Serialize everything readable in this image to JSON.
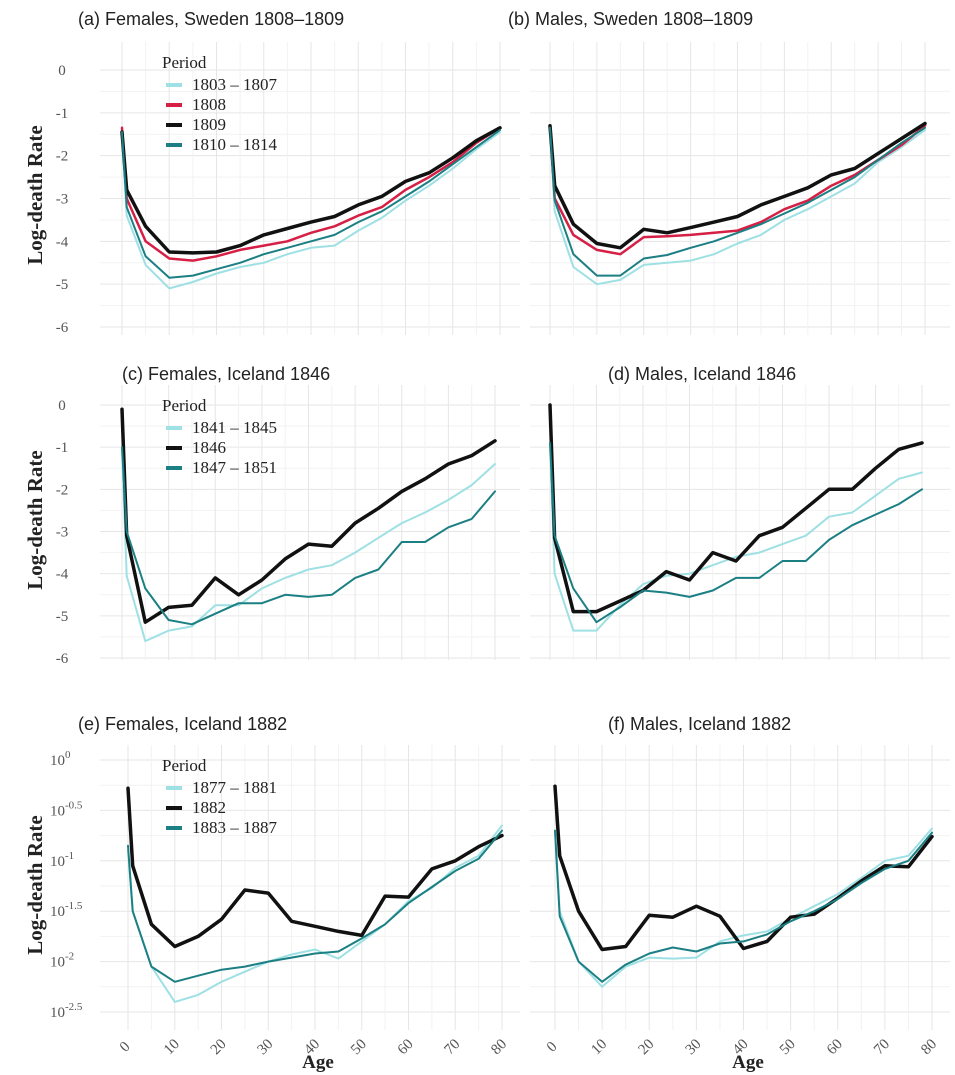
{
  "colors": {
    "light_teal": "#9ee0e3",
    "red": "#d61f45",
    "black": "#111111",
    "teal": "#1b7f83"
  },
  "y_axis_label": "Log-death Rate",
  "x_axis_label": "Age",
  "chart_data": [
    {
      "type": "line",
      "title": "(a) Females, Sweden 1808–1809",
      "ylabel": "Log-death Rate",
      "xlim": [
        0,
        80
      ],
      "ylim": [
        -6,
        0
      ],
      "yticks": [
        0,
        -1,
        -2,
        -3,
        -4,
        -5,
        -6
      ],
      "ytick_labels": [
        "0",
        "-1",
        "-2",
        "-3",
        "-4",
        "-5",
        "-6"
      ],
      "grid": true,
      "legend": {
        "title": "Period",
        "placement": "top-left"
      },
      "series": [
        {
          "name": "1803 – 1807",
          "color": "#9ee0e3",
          "width": 2,
          "x": [
            0,
            1,
            5,
            10,
            15,
            20,
            25,
            30,
            35,
            40,
            45,
            50,
            55,
            60,
            65,
            70,
            75,
            80
          ],
          "y": [
            -1.5,
            -3.4,
            -4.55,
            -5.1,
            -4.95,
            -4.75,
            -4.6,
            -4.5,
            -4.3,
            -4.15,
            -4.1,
            -3.75,
            -3.45,
            -3.05,
            -2.7,
            -2.3,
            -1.85,
            -1.45
          ]
        },
        {
          "name": "1808",
          "color": "#d61f45",
          "width": 2.5,
          "x": [
            0,
            1,
            5,
            10,
            15,
            20,
            25,
            30,
            35,
            40,
            45,
            50,
            55,
            60,
            65,
            70,
            75,
            80
          ],
          "y": [
            -1.35,
            -3.0,
            -4.0,
            -4.4,
            -4.45,
            -4.35,
            -4.2,
            -4.1,
            -4.0,
            -3.8,
            -3.65,
            -3.4,
            -3.2,
            -2.8,
            -2.5,
            -2.15,
            -1.7,
            -1.35
          ]
        },
        {
          "name": "1809",
          "color": "#111111",
          "width": 3.5,
          "x": [
            0,
            1,
            5,
            10,
            15,
            20,
            25,
            30,
            35,
            40,
            45,
            50,
            55,
            60,
            65,
            70,
            75,
            80
          ],
          "y": [
            -1.45,
            -2.8,
            -3.65,
            -4.25,
            -4.27,
            -4.25,
            -4.1,
            -3.85,
            -3.7,
            -3.55,
            -3.42,
            -3.15,
            -2.95,
            -2.6,
            -2.4,
            -2.05,
            -1.65,
            -1.35
          ]
        },
        {
          "name": "1810 – 1814",
          "color": "#1b7f83",
          "width": 2,
          "x": [
            0,
            1,
            5,
            10,
            15,
            20,
            25,
            30,
            35,
            40,
            45,
            50,
            55,
            60,
            65,
            70,
            75,
            80
          ],
          "y": [
            -1.45,
            -3.2,
            -4.35,
            -4.85,
            -4.8,
            -4.65,
            -4.5,
            -4.3,
            -4.15,
            -4.0,
            -3.85,
            -3.55,
            -3.3,
            -2.95,
            -2.6,
            -2.2,
            -1.8,
            -1.4
          ]
        }
      ]
    },
    {
      "type": "line",
      "title": "(b) Males, Sweden 1808–1809",
      "xlim": [
        0,
        80
      ],
      "ylim": [
        -6,
        0
      ],
      "grid": true,
      "series": [
        {
          "color": "#9ee0e3",
          "width": 2,
          "x": [
            0,
            1,
            5,
            10,
            15,
            20,
            25,
            30,
            35,
            40,
            45,
            50,
            55,
            60,
            65,
            70,
            75,
            80
          ],
          "y": [
            -1.4,
            -3.3,
            -4.6,
            -5.0,
            -4.9,
            -4.55,
            -4.5,
            -4.45,
            -4.3,
            -4.05,
            -3.85,
            -3.5,
            -3.25,
            -2.95,
            -2.65,
            -2.15,
            -1.8,
            -1.4
          ]
        },
        {
          "color": "#d61f45",
          "width": 2.5,
          "x": [
            0,
            1,
            5,
            10,
            15,
            20,
            25,
            30,
            35,
            40,
            45,
            50,
            55,
            60,
            65,
            70,
            75,
            80
          ],
          "y": [
            -1.3,
            -3.0,
            -3.85,
            -4.2,
            -4.3,
            -3.9,
            -3.88,
            -3.85,
            -3.8,
            -3.75,
            -3.55,
            -3.25,
            -3.05,
            -2.7,
            -2.45,
            -2.1,
            -1.75,
            -1.3
          ]
        },
        {
          "color": "#111111",
          "width": 3.5,
          "x": [
            0,
            1,
            5,
            10,
            15,
            20,
            25,
            30,
            35,
            40,
            45,
            50,
            55,
            60,
            65,
            70,
            75,
            80
          ],
          "y": [
            -1.3,
            -2.7,
            -3.6,
            -4.05,
            -4.15,
            -3.72,
            -3.8,
            -3.68,
            -3.55,
            -3.42,
            -3.15,
            -2.95,
            -2.75,
            -2.45,
            -2.3,
            -1.95,
            -1.6,
            -1.25
          ]
        },
        {
          "color": "#1b7f83",
          "width": 2,
          "x": [
            0,
            1,
            5,
            10,
            15,
            20,
            25,
            30,
            35,
            40,
            45,
            50,
            55,
            60,
            65,
            70,
            75,
            80
          ],
          "y": [
            -1.35,
            -3.05,
            -4.3,
            -4.8,
            -4.8,
            -4.4,
            -4.32,
            -4.15,
            -4.0,
            -3.8,
            -3.6,
            -3.35,
            -3.1,
            -2.8,
            -2.5,
            -2.1,
            -1.7,
            -1.35
          ]
        }
      ]
    },
    {
      "type": "line",
      "title": "(c) Females, Iceland 1846",
      "ylabel": "Log-death Rate",
      "xlim": [
        0,
        80
      ],
      "ylim": [
        -6,
        0
      ],
      "yticks": [
        0,
        -1,
        -2,
        -3,
        -4,
        -5,
        -6
      ],
      "ytick_labels": [
        "0",
        "-1",
        "-2",
        "-3",
        "-4",
        "-5",
        "-6"
      ],
      "grid": true,
      "legend": {
        "title": "Period",
        "placement": "top-left"
      },
      "series": [
        {
          "name": "1841 – 1845",
          "color": "#9ee0e3",
          "width": 2,
          "x": [
            0,
            1,
            5,
            10,
            15,
            20,
            25,
            30,
            35,
            40,
            45,
            50,
            55,
            60,
            65,
            70,
            75,
            80
          ],
          "y": [
            -1.0,
            -4.05,
            -5.6,
            -5.35,
            -5.25,
            -4.75,
            -4.75,
            -4.35,
            -4.1,
            -3.9,
            -3.8,
            -3.5,
            -3.15,
            -2.8,
            -2.55,
            -2.25,
            -1.9,
            -1.4
          ]
        },
        {
          "name": "1846",
          "color": "#111111",
          "width": 3.5,
          "x": [
            0,
            1,
            5,
            10,
            15,
            20,
            25,
            30,
            35,
            40,
            45,
            50,
            55,
            60,
            65,
            70,
            75,
            80
          ],
          "y": [
            -0.1,
            -3.1,
            -5.15,
            -4.8,
            -4.75,
            -4.1,
            -4.5,
            -4.15,
            -3.65,
            -3.3,
            -3.35,
            -2.8,
            -2.45,
            -2.05,
            -1.75,
            -1.4,
            -1.2,
            -0.85
          ]
        },
        {
          "name": "1847 – 1851",
          "color": "#1b7f83",
          "width": 2,
          "x": [
            0,
            1,
            5,
            10,
            15,
            20,
            25,
            30,
            35,
            40,
            45,
            50,
            55,
            60,
            65,
            70,
            75,
            80
          ],
          "y": [
            -1.0,
            -3.0,
            -4.35,
            -5.1,
            -5.2,
            -4.95,
            -4.7,
            -4.7,
            -4.5,
            -4.55,
            -4.5,
            -4.1,
            -3.9,
            -3.25,
            -3.25,
            -2.9,
            -2.7,
            -2.05
          ]
        }
      ]
    },
    {
      "type": "line",
      "title": "(d) Males, Iceland 1846",
      "xlim": [
        0,
        80
      ],
      "ylim": [
        -6,
        0
      ],
      "grid": true,
      "series": [
        {
          "color": "#9ee0e3",
          "width": 2,
          "x": [
            0,
            1,
            5,
            10,
            15,
            20,
            25,
            30,
            35,
            40,
            45,
            50,
            55,
            60,
            65,
            70,
            75,
            80
          ],
          "y": [
            -0.9,
            -4.0,
            -5.35,
            -5.35,
            -4.75,
            -4.25,
            -4.05,
            -4.0,
            -3.8,
            -3.6,
            -3.5,
            -3.3,
            -3.1,
            -2.65,
            -2.55,
            -2.15,
            -1.75,
            -1.6
          ]
        },
        {
          "color": "#111111",
          "width": 3.5,
          "x": [
            0,
            1,
            5,
            10,
            15,
            20,
            25,
            30,
            35,
            40,
            45,
            50,
            55,
            60,
            65,
            70,
            75,
            80
          ],
          "y": [
            0.0,
            -3.15,
            -4.9,
            -4.9,
            -4.65,
            -4.4,
            -3.95,
            -4.15,
            -3.5,
            -3.7,
            -3.1,
            -2.9,
            -2.45,
            -2.0,
            -2.0,
            -1.5,
            -1.05,
            -0.9
          ]
        },
        {
          "color": "#1b7f83",
          "width": 2,
          "x": [
            0,
            1,
            5,
            10,
            15,
            20,
            25,
            30,
            35,
            40,
            45,
            50,
            55,
            60,
            65,
            70,
            75,
            80
          ],
          "y": [
            -0.9,
            -3.1,
            -4.35,
            -5.15,
            -4.8,
            -4.4,
            -4.45,
            -4.55,
            -4.4,
            -4.1,
            -4.1,
            -3.7,
            -3.7,
            -3.2,
            -2.85,
            -2.6,
            -2.35,
            -2.0
          ]
        }
      ]
    },
    {
      "type": "line",
      "title": "(e) Females, Iceland 1882",
      "ylabel": "Log-death Rate",
      "xlim": [
        0,
        80
      ],
      "ylim": [
        -2.5,
        0
      ],
      "yscale": "log10",
      "yticks": [
        0,
        -0.5,
        -1,
        -1.5,
        -2,
        -2.5
      ],
      "ytick_labels": [
        "10^0",
        "10^-0.5",
        "10^-1",
        "10^-1.5",
        "10^-2",
        "10^-2.5"
      ],
      "grid": true,
      "legend": {
        "title": "Period",
        "placement": "top-left"
      },
      "series": [
        {
          "name": "1877 – 1881",
          "color": "#9ee0e3",
          "width": 2,
          "x": [
            0,
            1,
            5,
            10,
            15,
            20,
            25,
            30,
            35,
            40,
            45,
            50,
            55,
            60,
            65,
            70,
            75,
            80
          ],
          "y": [
            -0.9,
            -1.5,
            -2.05,
            -2.4,
            -2.33,
            -2.2,
            -2.1,
            -2.0,
            -1.93,
            -1.88,
            -1.97,
            -1.8,
            -1.63,
            -1.4,
            -1.27,
            -1.07,
            -0.95,
            -0.65
          ]
        },
        {
          "name": "1882",
          "color": "#111111",
          "width": 3.5,
          "x": [
            0,
            1,
            5,
            10,
            15,
            20,
            25,
            30,
            35,
            40,
            45,
            50,
            55,
            60,
            65,
            70,
            75,
            80
          ],
          "y": [
            -0.28,
            -1.05,
            -1.63,
            -1.85,
            -1.75,
            -1.58,
            -1.29,
            -1.32,
            -1.6,
            -1.65,
            -1.7,
            -1.74,
            -1.35,
            -1.36,
            -1.08,
            -1.0,
            -0.86,
            -0.75
          ]
        },
        {
          "name": "1883 – 1887",
          "color": "#1b7f83",
          "width": 2,
          "x": [
            0,
            1,
            5,
            10,
            15,
            20,
            25,
            30,
            35,
            40,
            45,
            50,
            55,
            60,
            65,
            70,
            75,
            80
          ],
          "y": [
            -0.85,
            -1.5,
            -2.05,
            -2.2,
            -2.14,
            -2.08,
            -2.05,
            -2.0,
            -1.96,
            -1.92,
            -1.9,
            -1.77,
            -1.63,
            -1.42,
            -1.26,
            -1.1,
            -0.98,
            -0.7
          ]
        }
      ]
    },
    {
      "type": "line",
      "title": "(f) Males, Iceland 1882",
      "xlim": [
        0,
        80
      ],
      "ylim": [
        -2.5,
        0
      ],
      "yscale": "log10",
      "grid": true,
      "series": [
        {
          "color": "#9ee0e3",
          "width": 2,
          "x": [
            0,
            1,
            5,
            10,
            15,
            20,
            25,
            30,
            35,
            40,
            45,
            50,
            55,
            60,
            65,
            70,
            75,
            80
          ],
          "y": [
            -0.7,
            -1.5,
            -2.0,
            -2.25,
            -2.05,
            -1.96,
            -1.97,
            -1.96,
            -1.8,
            -1.74,
            -1.7,
            -1.57,
            -1.45,
            -1.33,
            -1.17,
            -1.0,
            -0.95,
            -0.68
          ]
        },
        {
          "color": "#111111",
          "width": 3.5,
          "x": [
            0,
            1,
            5,
            10,
            15,
            20,
            25,
            30,
            35,
            40,
            45,
            50,
            55,
            60,
            65,
            70,
            75,
            80
          ],
          "y": [
            -0.26,
            -0.95,
            -1.5,
            -1.88,
            -1.85,
            -1.54,
            -1.56,
            -1.45,
            -1.55,
            -1.87,
            -1.8,
            -1.56,
            -1.53,
            -1.37,
            -1.2,
            -1.05,
            -1.06,
            -0.76
          ]
        },
        {
          "color": "#1b7f83",
          "width": 2,
          "x": [
            0,
            1,
            5,
            10,
            15,
            20,
            25,
            30,
            35,
            40,
            45,
            50,
            55,
            60,
            65,
            70,
            75,
            80
          ],
          "y": [
            -0.7,
            -1.55,
            -2.0,
            -2.2,
            -2.03,
            -1.92,
            -1.86,
            -1.9,
            -1.82,
            -1.8,
            -1.73,
            -1.6,
            -1.5,
            -1.38,
            -1.22,
            -1.08,
            -1.0,
            -0.72
          ]
        }
      ]
    }
  ]
}
